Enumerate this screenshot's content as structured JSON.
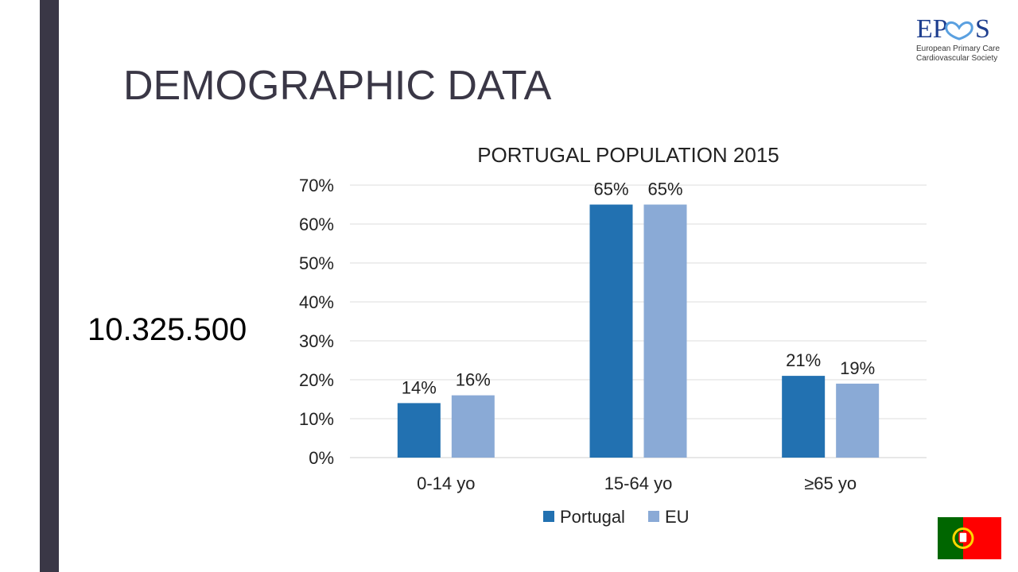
{
  "slide": {
    "title": "DEMOGRAPHIC DATA",
    "population_total": "10.325.500",
    "logo": {
      "wordmark_left": "EP",
      "wordmark_right": "S",
      "tagline_line1": "European Primary Care",
      "tagline_line2": "Cardiovascular Society",
      "icon": "heart-icon",
      "color": "#1f3f8f"
    },
    "flag": {
      "icon": "portugal-flag-icon",
      "green": "#006600",
      "red": "#ff0000"
    }
  },
  "chart_data": {
    "type": "bar",
    "title": "PORTUGAL POPULATION 2015",
    "categories": [
      "0-14 yo",
      "15-64 yo",
      "≥65 yo"
    ],
    "series": [
      {
        "name": "Portugal",
        "values": [
          14,
          65,
          21
        ],
        "labels": [
          "14%",
          "65%",
          "21%"
        ],
        "color": "#2271b1"
      },
      {
        "name": "EU",
        "values": [
          16,
          65,
          19
        ],
        "labels": [
          "16%",
          "65%",
          "19%"
        ],
        "color": "#8aaad6"
      }
    ],
    "yticks": [
      "0%",
      "10%",
      "20%",
      "30%",
      "40%",
      "50%",
      "60%",
      "70%"
    ],
    "ylim": [
      0,
      70
    ],
    "grid": true,
    "legend": "bottom"
  }
}
